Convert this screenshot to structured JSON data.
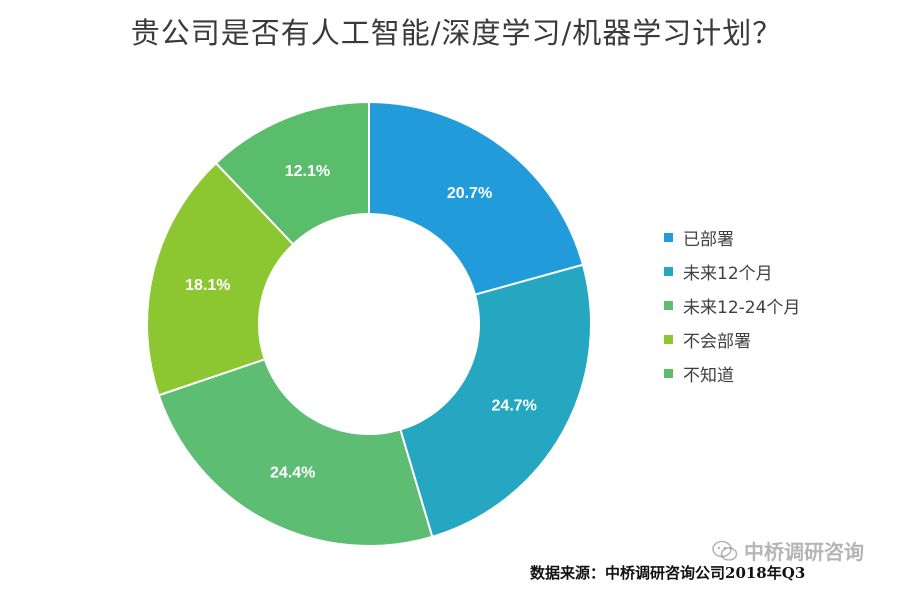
{
  "title": "贵公司是否有人工智能/深度学习/机器学习计划？",
  "chart_data": {
    "type": "pie",
    "donut": true,
    "title": "贵公司是否有人工智能/深度学习/机器学习计划？",
    "legend_position": "right",
    "series": [
      {
        "name": "已部署",
        "value": 20.7,
        "label": "20.7%",
        "color": "#219BDA"
      },
      {
        "name": "未来12个月",
        "value": 24.7,
        "label": "24.7%",
        "color": "#25A7C2"
      },
      {
        "name": "未来12-24个月",
        "value": 24.4,
        "label": "24.4%",
        "color": "#5DBE73"
      },
      {
        "name": "不会部署",
        "value": 18.1,
        "label": "18.1%",
        "color": "#8CC631"
      },
      {
        "name": "不知道",
        "value": 12.1,
        "label": "12.1%",
        "color": "#5ABD6B"
      }
    ]
  },
  "source": "数据来源：中桥调研咨询公司2018年Q3",
  "watermark": {
    "text": "中桥调研咨询",
    "icon": "wechat-icon"
  }
}
